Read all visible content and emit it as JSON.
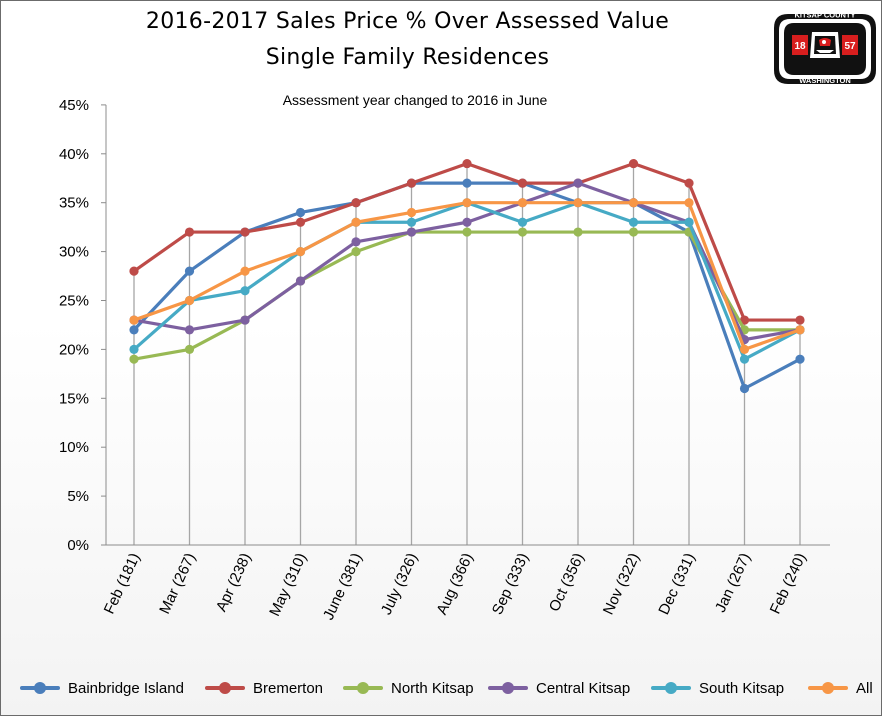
{
  "title_line1": "2016-2017 Sales Price % Over Assessed Value",
  "title_line2": "Single Family Residences",
  "subtitle": "Assessment  year changed to 2016 in June",
  "logo": {
    "top_text": "KITSAP COUNTY",
    "bottom_text": "WASHINGTON",
    "left_number": "18",
    "right_number": "57"
  },
  "chart_data": {
    "type": "line",
    "title": "2016-2017 Sales Price % Over Assessed Value",
    "subtitle": "Single Family Residences",
    "annotation": "Assessment  year changed to 2016 in June",
    "categories": [
      "Feb (181)",
      "Mar (267)",
      "Apr (238)",
      "May (310)",
      "June (381)",
      "July (326)",
      "Aug (366)",
      "Sep (333)",
      "Oct (356)",
      "Nov (322)",
      "Dec (331)",
      "Jan (267)",
      "Feb (240)"
    ],
    "y_ticks": [
      "0%",
      "5%",
      "10%",
      "15%",
      "20%",
      "25%",
      "30%",
      "35%",
      "40%",
      "45%"
    ],
    "ylim": [
      0,
      45
    ],
    "grid": "vertical drop lines",
    "legend_position": "bottom",
    "series": [
      {
        "name": "Bainbridge Island",
        "color": "#4a7ebb",
        "values": [
          22,
          28,
          32,
          34,
          35,
          37,
          37,
          37,
          35,
          35,
          32,
          16,
          19
        ]
      },
      {
        "name": "Bremerton",
        "color": "#be4b48",
        "values": [
          28,
          32,
          32,
          33,
          35,
          37,
          39,
          37,
          37,
          39,
          37,
          23,
          23
        ]
      },
      {
        "name": "North Kitsap",
        "color": "#98b954",
        "values": [
          19,
          20,
          23,
          27,
          30,
          32,
          32,
          32,
          32,
          32,
          32,
          22,
          22
        ]
      },
      {
        "name": "Central Kitsap",
        "color": "#7d60a0",
        "values": [
          23,
          22,
          23,
          27,
          31,
          32,
          33,
          35,
          37,
          35,
          33,
          21,
          22
        ]
      },
      {
        "name": "South Kitsap",
        "color": "#46aac5",
        "values": [
          20,
          25,
          26,
          30,
          33,
          33,
          35,
          33,
          35,
          33,
          33,
          19,
          22
        ]
      },
      {
        "name": "All",
        "color": "#f79646",
        "values": [
          23,
          25,
          28,
          30,
          33,
          34,
          35,
          35,
          35,
          35,
          35,
          20,
          22
        ]
      }
    ]
  }
}
